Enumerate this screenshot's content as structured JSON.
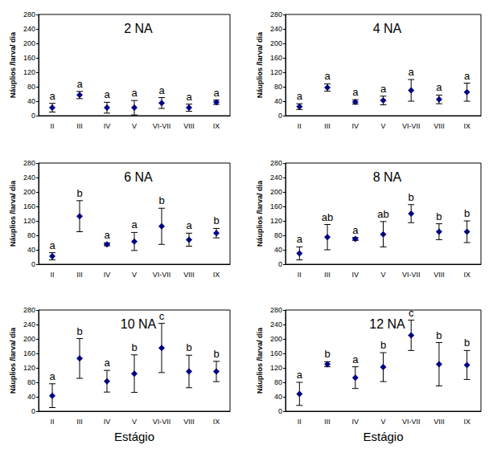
{
  "chart_data": [
    {
      "type": "scatter",
      "title": "2 NA",
      "categories": [
        "II",
        "III",
        "IV",
        "V",
        "VI-VII",
        "VIII",
        "IX"
      ],
      "values": [
        22,
        57,
        22,
        22,
        35,
        22,
        37
      ],
      "errors": [
        12,
        10,
        15,
        20,
        15,
        10,
        6
      ],
      "letters": [
        "a",
        "a",
        "a",
        "a",
        "a",
        "a",
        "a"
      ],
      "ylabel": "Náuplios /larva/ dia",
      "ylim": [
        0,
        280
      ],
      "yticks": [
        0,
        40,
        80,
        120,
        160,
        200,
        240,
        280
      ],
      "color": "#000080",
      "marker": "diamond",
      "grid": false
    },
    {
      "type": "scatter",
      "title": "4 NA",
      "categories": [
        "II",
        "III",
        "IV",
        "V",
        "VI-VII",
        "VIII",
        "IX"
      ],
      "values": [
        25,
        78,
        38,
        42,
        70,
        45,
        65
      ],
      "errors": [
        8,
        10,
        6,
        12,
        30,
        12,
        25
      ],
      "letters": [
        "a",
        "a",
        "a",
        "a",
        "a",
        "a",
        "a"
      ],
      "ylabel": "Náuplios /larva/ dia",
      "ylim": [
        0,
        280
      ],
      "yticks": [
        0,
        40,
        80,
        120,
        160,
        200,
        240,
        280
      ],
      "color": "#000080",
      "marker": "diamond",
      "grid": false
    },
    {
      "type": "scatter",
      "title": "6 NA",
      "categories": [
        "II",
        "III",
        "IV",
        "V",
        "VI-VII",
        "VIII",
        "IX"
      ],
      "values": [
        22,
        133,
        55,
        63,
        105,
        68,
        86
      ],
      "errors": [
        10,
        43,
        4,
        25,
        50,
        18,
        13
      ],
      "letters": [
        "a",
        "b",
        "a",
        "a",
        "b",
        "a",
        "b"
      ],
      "ylabel": "Náuplios /larva/ dia",
      "ylim": [
        0,
        280
      ],
      "yticks": [
        0,
        40,
        80,
        120,
        160,
        200,
        240,
        280
      ],
      "color": "#000080",
      "marker": "diamond",
      "grid": false
    },
    {
      "type": "scatter",
      "title": "8 NA",
      "categories": [
        "II",
        "III",
        "IV",
        "V",
        "VI-VII",
        "VIII",
        "IX"
      ],
      "values": [
        30,
        75,
        70,
        83,
        140,
        90,
        90
      ],
      "errors": [
        18,
        35,
        4,
        35,
        25,
        22,
        30
      ],
      "letters": [
        "a",
        "ab",
        "a",
        "ab",
        "b",
        "b",
        "b"
      ],
      "ylabel": "Náuplios /larva/ dia",
      "ylim": [
        0,
        280
      ],
      "yticks": [
        0,
        40,
        80,
        120,
        160,
        200,
        240,
        280
      ],
      "color": "#000080",
      "marker": "diamond",
      "grid": false
    },
    {
      "type": "scatter",
      "title": "10 NA",
      "categories": [
        "II",
        "III",
        "IV",
        "V",
        "VI-VII",
        "VIII",
        "IX"
      ],
      "values": [
        43,
        146,
        83,
        104,
        175,
        110,
        110
      ],
      "errors": [
        33,
        55,
        30,
        52,
        68,
        45,
        28
      ],
      "letters": [
        "a",
        "b",
        "a",
        "b",
        "c",
        "b",
        "b"
      ],
      "xlabel": "Estágio",
      "ylabel": "Náuplios /larva/ dia",
      "ylim": [
        0,
        280
      ],
      "yticks": [
        0,
        40,
        80,
        120,
        160,
        200,
        240,
        280
      ],
      "color": "#000080",
      "marker": "diamond",
      "grid": false
    },
    {
      "type": "scatter",
      "title": "12 NA",
      "categories": [
        "II",
        "III",
        "IV",
        "V",
        "VI-VII",
        "VIII",
        "IX"
      ],
      "values": [
        48,
        130,
        93,
        122,
        210,
        130,
        128
      ],
      "errors": [
        32,
        7,
        30,
        40,
        42,
        60,
        40
      ],
      "letters": [
        "a",
        "b",
        "a",
        "b",
        "c",
        "b",
        "b"
      ],
      "xlabel": "Estágio",
      "ylabel": "Náuplios /larva/ dia",
      "ylim": [
        0,
        280
      ],
      "yticks": [
        0,
        40,
        80,
        120,
        160,
        200,
        240,
        280
      ],
      "color": "#000080",
      "marker": "diamond",
      "grid": false
    }
  ]
}
